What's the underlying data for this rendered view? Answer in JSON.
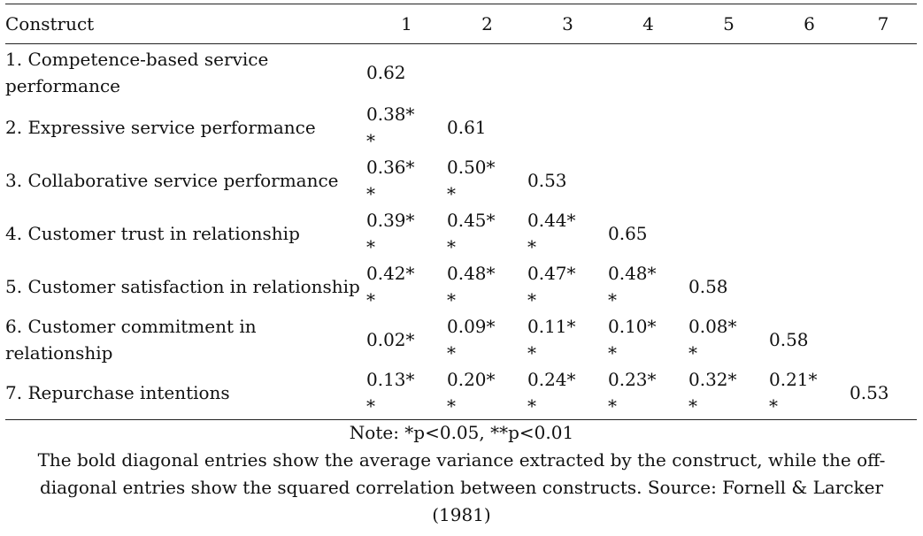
{
  "table": {
    "headers": [
      "Construct",
      "1",
      "2",
      "3",
      "4",
      "5",
      "6",
      "7"
    ],
    "rows": [
      {
        "label": "1. Competence-based service performance",
        "cells": [
          "0.62"
        ]
      },
      {
        "label": "2. Expressive service performance",
        "cells": [
          "0.38**",
          "0.61"
        ]
      },
      {
        "label": "3. Collaborative service performance",
        "cells": [
          "0.36**",
          "0.50**",
          "0.53"
        ]
      },
      {
        "label": "4. Customer trust in relationship",
        "cells": [
          "0.39**",
          "0.45**",
          "0.44**",
          "0.65"
        ]
      },
      {
        "label": "5. Customer satisfaction in relationship",
        "cells": [
          "0.42**",
          "0.48**",
          "0.47**",
          "0.48**",
          "0.58"
        ]
      },
      {
        "label": "6. Customer commitment in relationship",
        "cells": [
          "0.02*",
          "0.09**",
          "0.11**",
          "0.10**",
          "0.08**",
          "0.58"
        ]
      },
      {
        "label": "7. Repurchase intentions",
        "cells": [
          "0.13**",
          "0.20**",
          "0.24**",
          "0.23**",
          "0.32**",
          "0.21**",
          "0.53"
        ]
      }
    ]
  },
  "notes": {
    "significance": "Note: *p<0.05, **p<0.01",
    "description": "The bold diagonal entries show the average variance extracted by the construct, while the off-diagonal entries show the squared correlation between constructs. Source: Fornell & Larcker (1981)"
  }
}
